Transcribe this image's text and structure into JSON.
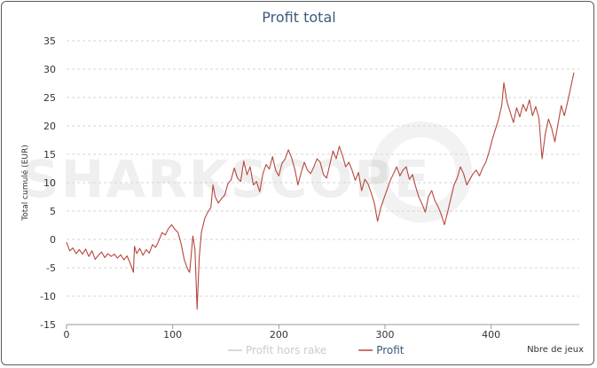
{
  "chart_data": {
    "type": "line",
    "title": "Profit total",
    "xlabel": "Nbre de jeux",
    "ylabel": "Total cumulé (EUR)",
    "xlim": [
      0,
      483
    ],
    "ylim": [
      -15,
      35
    ],
    "x_ticks": [
      0,
      100,
      200,
      300,
      400
    ],
    "y_ticks": [
      -15,
      -10,
      -5,
      0,
      5,
      10,
      15,
      20,
      25,
      30,
      35
    ],
    "grid": true,
    "legend": "bottom",
    "watermark": "SHARKSCOPE",
    "series": [
      {
        "name": "Profit hors rake",
        "color": "#cccccc",
        "visible": false,
        "points": []
      },
      {
        "name": "Profit",
        "color": "#b5483f",
        "points": [
          [
            0,
            -0.5
          ],
          [
            3,
            -2
          ],
          [
            6,
            -1.5
          ],
          [
            9,
            -2.5
          ],
          [
            12,
            -1.8
          ],
          [
            15,
            -2.6
          ],
          [
            18,
            -1.7
          ],
          [
            21,
            -3
          ],
          [
            24,
            -2
          ],
          [
            27,
            -3.5
          ],
          [
            30,
            -2.8
          ],
          [
            33,
            -2.2
          ],
          [
            36,
            -3.2
          ],
          [
            39,
            -2.5
          ],
          [
            42,
            -3
          ],
          [
            45,
            -2.6
          ],
          [
            48,
            -3.3
          ],
          [
            51,
            -2.7
          ],
          [
            54,
            -3.6
          ],
          [
            57,
            -2.9
          ],
          [
            60,
            -4.2
          ],
          [
            63,
            -5.8
          ],
          [
            64,
            -1.2
          ],
          [
            66,
            -2.5
          ],
          [
            69,
            -1.6
          ],
          [
            72,
            -2.8
          ],
          [
            75,
            -1.8
          ],
          [
            78,
            -2.4
          ],
          [
            81,
            -0.9
          ],
          [
            84,
            -1.4
          ],
          [
            87,
            -0.2
          ],
          [
            90,
            1.2
          ],
          [
            93,
            0.8
          ],
          [
            96,
            1.9
          ],
          [
            99,
            2.6
          ],
          [
            102,
            1.8
          ],
          [
            105,
            1.2
          ],
          [
            108,
            -0.8
          ],
          [
            111,
            -3.6
          ],
          [
            114,
            -5.2
          ],
          [
            116,
            -5.8
          ],
          [
            119,
            0.6
          ],
          [
            121,
            -1.8
          ],
          [
            123,
            -12.3
          ],
          [
            125,
            -3.2
          ],
          [
            127,
            1.2
          ],
          [
            130,
            3.6
          ],
          [
            133,
            4.8
          ],
          [
            136,
            5.6
          ],
          [
            138,
            9.6
          ],
          [
            140,
            7.6
          ],
          [
            143,
            6.4
          ],
          [
            146,
            7.2
          ],
          [
            149,
            7.8
          ],
          [
            152,
            9.8
          ],
          [
            155,
            10.5
          ],
          [
            158,
            12.6
          ],
          [
            161,
            10.8
          ],
          [
            164,
            10.2
          ],
          [
            167,
            13.8
          ],
          [
            170,
            11.4
          ],
          [
            173,
            12.8
          ],
          [
            176,
            9.6
          ],
          [
            179,
            10.2
          ],
          [
            182,
            8.4
          ],
          [
            185,
            11.6
          ],
          [
            188,
            13.2
          ],
          [
            191,
            12.4
          ],
          [
            194,
            14.6
          ],
          [
            197,
            12.2
          ],
          [
            200,
            11.2
          ],
          [
            203,
            13.4
          ],
          [
            206,
            14.2
          ],
          [
            209,
            15.8
          ],
          [
            212,
            14.4
          ],
          [
            215,
            12.4
          ],
          [
            218,
            9.6
          ],
          [
            221,
            11.8
          ],
          [
            224,
            13.6
          ],
          [
            227,
            12.2
          ],
          [
            230,
            11.6
          ],
          [
            233,
            12.8
          ],
          [
            236,
            14.2
          ],
          [
            239,
            13.6
          ],
          [
            242,
            11.4
          ],
          [
            245,
            10.8
          ],
          [
            248,
            13.2
          ],
          [
            251,
            15.6
          ],
          [
            254,
            14.2
          ],
          [
            257,
            16.4
          ],
          [
            260,
            14.8
          ],
          [
            263,
            12.8
          ],
          [
            266,
            13.6
          ],
          [
            269,
            12.2
          ],
          [
            272,
            10.4
          ],
          [
            275,
            11.8
          ],
          [
            278,
            8.6
          ],
          [
            281,
            10.6
          ],
          [
            284,
            9.8
          ],
          [
            287,
            8.2
          ],
          [
            290,
            6.4
          ],
          [
            293,
            3.2
          ],
          [
            296,
            5.6
          ],
          [
            299,
            7.2
          ],
          [
            302,
            8.8
          ],
          [
            305,
            10.4
          ],
          [
            308,
            11.6
          ],
          [
            311,
            12.8
          ],
          [
            314,
            11.2
          ],
          [
            317,
            12.2
          ],
          [
            320,
            12.8
          ],
          [
            323,
            10.6
          ],
          [
            326,
            11.4
          ],
          [
            329,
            9.2
          ],
          [
            332,
            7.4
          ],
          [
            335,
            6.2
          ],
          [
            338,
            4.8
          ],
          [
            341,
            7.6
          ],
          [
            344,
            8.6
          ],
          [
            347,
            6.8
          ],
          [
            350,
            5.8
          ],
          [
            353,
            4.4
          ],
          [
            356,
            2.6
          ],
          [
            359,
            4.8
          ],
          [
            362,
            7.2
          ],
          [
            365,
            9.6
          ],
          [
            368,
            10.8
          ],
          [
            371,
            12.8
          ],
          [
            374,
            11.6
          ],
          [
            377,
            9.6
          ],
          [
            380,
            10.6
          ],
          [
            383,
            11.6
          ],
          [
            386,
            12.2
          ],
          [
            389,
            11.2
          ],
          [
            392,
            12.6
          ],
          [
            395,
            13.6
          ],
          [
            398,
            15.4
          ],
          [
            401,
            17.6
          ],
          [
            404,
            19.4
          ],
          [
            407,
            21.2
          ],
          [
            410,
            23.6
          ],
          [
            412,
            27.6
          ],
          [
            415,
            24.2
          ],
          [
            418,
            22.4
          ],
          [
            421,
            20.6
          ],
          [
            424,
            23.2
          ],
          [
            427,
            21.6
          ],
          [
            430,
            23.8
          ],
          [
            433,
            22.6
          ],
          [
            436,
            24.6
          ],
          [
            439,
            21.8
          ],
          [
            442,
            23.4
          ],
          [
            445,
            21.4
          ],
          [
            448,
            14.2
          ],
          [
            451,
            18.6
          ],
          [
            454,
            21.2
          ],
          [
            457,
            19.6
          ],
          [
            460,
            17.2
          ],
          [
            463,
            20.4
          ],
          [
            466,
            23.6
          ],
          [
            469,
            21.8
          ],
          [
            472,
            24.2
          ],
          [
            475,
            26.8
          ],
          [
            478,
            29.4
          ]
        ]
      }
    ]
  }
}
